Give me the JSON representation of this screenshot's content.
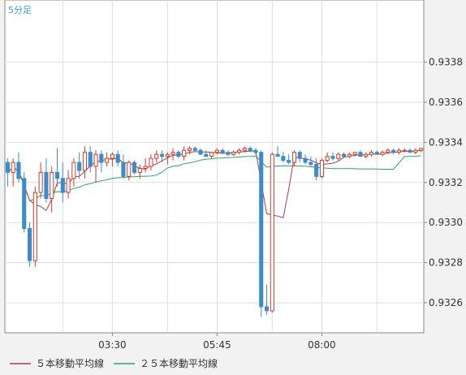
{
  "chart_data": {
    "type": "candlestick",
    "timeframe_label": "5分足",
    "x_ticks": [
      "03:30",
      "05:45",
      "08:00"
    ],
    "y_ticks": [
      "0.9338",
      "0.9336",
      "0.9334",
      "0.9332",
      "0.9330",
      "0.9328",
      "0.9326"
    ],
    "ylim": [
      0.93245,
      0.93411
    ],
    "grid": true,
    "legend_position": "bottom-left",
    "colors": {
      "up": "#d23c28",
      "down": "#3c8cc8",
      "ma_short": "#a83c50",
      "ma_long": "#28aa5a",
      "grid": "#dddddd",
      "frame": "#888888"
    },
    "series": [
      {
        "name": "５本移動平均線",
        "kind": "moving_average",
        "period": 5,
        "color": "#a83c50"
      },
      {
        "name": "２５本移動平均線",
        "kind": "moving_average",
        "period": 25,
        "color": "#28aa5a"
      }
    ],
    "candles": [
      [
        0.9333,
        0.93332,
        0.93318,
        0.93325
      ],
      [
        0.93325,
        0.93332,
        0.93318,
        0.9333
      ],
      [
        0.9333,
        0.93335,
        0.9332,
        0.93322
      ],
      [
        0.93322,
        0.93325,
        0.93295,
        0.93297
      ],
      [
        0.93297,
        0.933,
        0.93278,
        0.93281
      ],
      [
        0.93281,
        0.93318,
        0.93278,
        0.93315
      ],
      [
        0.93315,
        0.9333,
        0.93312,
        0.93325
      ],
      [
        0.93325,
        0.93332,
        0.9331,
        0.93312
      ],
      [
        0.93312,
        0.93328,
        0.93305,
        0.93325
      ],
      [
        0.93325,
        0.93337,
        0.93318,
        0.93322
      ],
      [
        0.93322,
        0.9333,
        0.9331,
        0.93315
      ],
      [
        0.93315,
        0.93326,
        0.93312,
        0.93322
      ],
      [
        0.93322,
        0.93332,
        0.93318,
        0.9333
      ],
      [
        0.9333,
        0.93335,
        0.93322,
        0.93326
      ],
      [
        0.93326,
        0.93338,
        0.93322,
        0.93335
      ],
      [
        0.93335,
        0.93338,
        0.93325,
        0.93328
      ],
      [
        0.93328,
        0.93336,
        0.9332,
        0.93334
      ],
      [
        0.93334,
        0.93336,
        0.93325,
        0.9333
      ],
      [
        0.9333,
        0.93335,
        0.93328,
        0.93332
      ],
      [
        0.93332,
        0.93335,
        0.93328,
        0.93334
      ],
      [
        0.93334,
        0.93336,
        0.93328,
        0.9333
      ],
      [
        0.9333,
        0.93334,
        0.93322,
        0.93323
      ],
      [
        0.93323,
        0.93331,
        0.93321,
        0.9333
      ],
      [
        0.9333,
        0.93331,
        0.93324,
        0.93325
      ],
      [
        0.93325,
        0.93329,
        0.93322,
        0.93327
      ],
      [
        0.93327,
        0.93332,
        0.93325,
        0.93328
      ],
      [
        0.93328,
        0.93334,
        0.93326,
        0.93332
      ],
      [
        0.93332,
        0.93336,
        0.9333,
        0.93334
      ],
      [
        0.93334,
        0.93336,
        0.9333,
        0.93333
      ],
      [
        0.93333,
        0.93335,
        0.93329,
        0.93334
      ],
      [
        0.93334,
        0.93337,
        0.93331,
        0.93335
      ],
      [
        0.93335,
        0.93336,
        0.93332,
        0.93333
      ],
      [
        0.93333,
        0.93338,
        0.93331,
        0.93336
      ],
      [
        0.93336,
        0.93338,
        0.93334,
        0.93337
      ],
      [
        0.93337,
        0.93338,
        0.93336,
        0.93336
      ],
      [
        0.93336,
        0.93337,
        0.93334,
        0.93334
      ],
      [
        0.93334,
        0.93336,
        0.93333,
        0.93333
      ],
      [
        0.93333,
        0.93335,
        0.93332,
        0.93335
      ],
      [
        0.93335,
        0.93337,
        0.93334,
        0.93336
      ],
      [
        0.93336,
        0.93337,
        0.93334,
        0.93335
      ],
      [
        0.93335,
        0.93336,
        0.93333,
        0.93334
      ],
      [
        0.93334,
        0.93336,
        0.93333,
        0.93335
      ],
      [
        0.93335,
        0.93337,
        0.93334,
        0.93336
      ],
      [
        0.93336,
        0.93338,
        0.93335,
        0.93337
      ],
      [
        0.93337,
        0.93338,
        0.93335,
        0.93336
      ],
      [
        0.93336,
        0.93337,
        0.93334,
        0.93335
      ],
      [
        0.93335,
        0.93336,
        0.93253,
        0.93258
      ],
      [
        0.93258,
        0.93269,
        0.93254,
        0.93256
      ],
      [
        0.93256,
        0.93335,
        0.93255,
        0.93334
      ],
      [
        0.93334,
        0.93338,
        0.93333,
        0.93333
      ],
      [
        0.93333,
        0.93335,
        0.9333,
        0.93331
      ],
      [
        0.93331,
        0.93334,
        0.93329,
        0.9333
      ],
      [
        0.9333,
        0.93336,
        0.93328,
        0.93335
      ],
      [
        0.93335,
        0.93336,
        0.9333,
        0.93332
      ],
      [
        0.93332,
        0.93334,
        0.93329,
        0.9333
      ],
      [
        0.9333,
        0.93333,
        0.93328,
        0.93329
      ],
      [
        0.93329,
        0.93332,
        0.93321,
        0.93323
      ],
      [
        0.93323,
        0.93332,
        0.93322,
        0.93331
      ],
      [
        0.93331,
        0.93335,
        0.9333,
        0.93333
      ],
      [
        0.93333,
        0.93335,
        0.93331,
        0.93332
      ],
      [
        0.93332,
        0.93335,
        0.93331,
        0.93334
      ],
      [
        0.93334,
        0.93335,
        0.93332,
        0.93333
      ],
      [
        0.93333,
        0.93335,
        0.93332,
        0.93334
      ],
      [
        0.93334,
        0.93335,
        0.93333,
        0.93335
      ],
      [
        0.93335,
        0.93336,
        0.93333,
        0.93333
      ],
      [
        0.93333,
        0.93335,
        0.93332,
        0.93334
      ],
      [
        0.93334,
        0.93336,
        0.93333,
        0.93335
      ],
      [
        0.93335,
        0.93336,
        0.93334,
        0.93334
      ],
      [
        0.93334,
        0.93336,
        0.93333,
        0.93335
      ],
      [
        0.93335,
        0.93337,
        0.93334,
        0.93336
      ],
      [
        0.93336,
        0.93337,
        0.93334,
        0.93335
      ],
      [
        0.93335,
        0.93337,
        0.93334,
        0.93336
      ],
      [
        0.93336,
        0.93337,
        0.93335,
        0.93336
      ],
      [
        0.93336,
        0.93337,
        0.93335,
        0.93335
      ],
      [
        0.93335,
        0.93337,
        0.93334,
        0.93336
      ],
      [
        0.93336,
        0.93337,
        0.93335,
        0.93337
      ]
    ]
  }
}
